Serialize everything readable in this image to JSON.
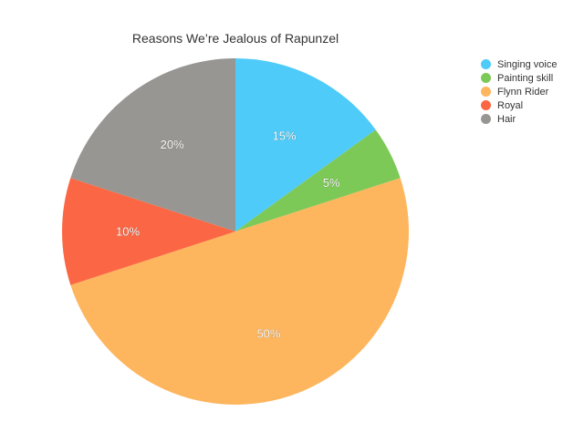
{
  "chart_data": {
    "type": "pie",
    "title": "Reasons We’re Jealous of Rapunzel",
    "categories": [
      "Singing voice",
      "Painting skill",
      "Flynn Rider",
      "Royal",
      "Hair"
    ],
    "values": [
      15,
      5,
      50,
      10,
      20
    ],
    "labels": [
      "15%",
      "5%",
      "50%",
      "10%",
      "20%"
    ],
    "colors": [
      "#4FCBF9",
      "#7DC957",
      "#FDB65E",
      "#FB6744",
      "#989692"
    ],
    "legend": "right"
  }
}
